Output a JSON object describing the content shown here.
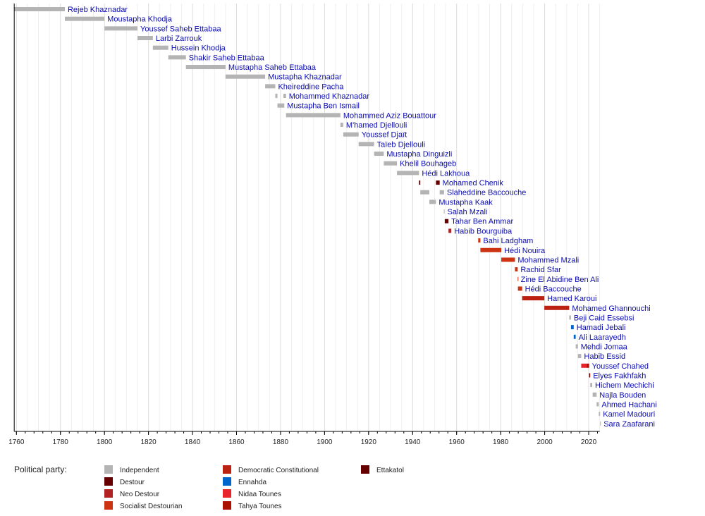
{
  "chart_data": {
    "type": "timeline",
    "xlim": [
      1759,
      2025
    ],
    "x_ticks": [
      1760,
      1780,
      1800,
      1820,
      1840,
      1860,
      1880,
      1900,
      1920,
      1940,
      1960,
      1980,
      2000,
      2020
    ],
    "grid": true,
    "legend_title": "Political party:",
    "legend_placement": "bottom",
    "parties": [
      {
        "name": "Independent",
        "color": "#b4b4b4"
      },
      {
        "name": "Destour",
        "color": "#660000"
      },
      {
        "name": "Neo Destour",
        "color": "#b22222"
      },
      {
        "name": "Socialist Destourian",
        "color": "#cc3311"
      },
      {
        "name": "Democratic Constitutional",
        "color": "#bb2211"
      },
      {
        "name": "Ennahda",
        "color": "#0066cc"
      },
      {
        "name": "Nidaa Tounes",
        "color": "#e8232a"
      },
      {
        "name": "Tahya Tounes",
        "color": "#aa1100"
      },
      {
        "name": "Ettakatol",
        "color": "#660000"
      }
    ],
    "rows": [
      {
        "name": "Rejeb Khaznadar",
        "terms": [
          [
            1759,
            1782,
            "Independent"
          ]
        ]
      },
      {
        "name": "Moustapha Khodja",
        "terms": [
          [
            1782,
            1800,
            "Independent"
          ]
        ]
      },
      {
        "name": "Youssef Saheb Ettabaa",
        "terms": [
          [
            1800,
            1815,
            "Independent"
          ]
        ]
      },
      {
        "name": "Larbi Zarrouk",
        "terms": [
          [
            1815,
            1822,
            "Independent"
          ]
        ]
      },
      {
        "name": "Hussein Khodja",
        "terms": [
          [
            1822,
            1829,
            "Independent"
          ]
        ]
      },
      {
        "name": "Shakir Saheb Ettabaa",
        "terms": [
          [
            1829,
            1837,
            "Independent"
          ]
        ]
      },
      {
        "name": "Mustapha Saheb Ettabaa",
        "terms": [
          [
            1837,
            1855,
            "Independent"
          ]
        ]
      },
      {
        "name": "Mustapha Khaznadar",
        "terms": [
          [
            1855,
            1873,
            "Independent"
          ]
        ]
      },
      {
        "name": "Kheireddine Pacha",
        "terms": [
          [
            1873,
            1877.6,
            "Independent"
          ]
        ]
      },
      {
        "name": "Mohammed Khaznadar",
        "terms": [
          [
            1877.6,
            1878.6,
            "Independent"
          ],
          [
            1881.3,
            1882.5,
            "Independent"
          ]
        ]
      },
      {
        "name": "Mustapha Ben Ismail",
        "terms": [
          [
            1878.6,
            1881.7,
            "Independent"
          ]
        ]
      },
      {
        "name": "Mohammed Aziz Bouattour",
        "terms": [
          [
            1882.5,
            1907.2,
            "Independent"
          ]
        ]
      },
      {
        "name": "M'hamed Djellouli",
        "terms": [
          [
            1907.2,
            1908.5,
            "Independent"
          ]
        ]
      },
      {
        "name": "Youssef Djaït",
        "terms": [
          [
            1908.5,
            1915.5,
            "Independent"
          ]
        ]
      },
      {
        "name": "Taïeb Djellouli",
        "terms": [
          [
            1915.5,
            1922.5,
            "Independent"
          ]
        ]
      },
      {
        "name": "Mustapha Dinguizli",
        "terms": [
          [
            1922.5,
            1926.9,
            "Independent"
          ]
        ]
      },
      {
        "name": "Khelil Bouhageb",
        "terms": [
          [
            1926.9,
            1932.9,
            "Independent"
          ]
        ]
      },
      {
        "name": "Hédi Lakhoua",
        "terms": [
          [
            1932.9,
            1942.9,
            "Independent"
          ]
        ]
      },
      {
        "name": "Mohamed Chenik",
        "terms": [
          [
            1942.9,
            1943.5,
            "Destour"
          ],
          [
            1950.6,
            1952.3,
            "Destour"
          ]
        ]
      },
      {
        "name": "Slaheddine Baccouche",
        "terms": [
          [
            1943.5,
            1947.6,
            "Independent"
          ],
          [
            1952.3,
            1954.3,
            "Independent"
          ]
        ]
      },
      {
        "name": "Mustapha Kaak",
        "terms": [
          [
            1947.6,
            1950.6,
            "Independent"
          ]
        ]
      },
      {
        "name": "Salah Mzali",
        "terms": [
          [
            1954.2,
            1954.5,
            "Independent"
          ]
        ]
      },
      {
        "name": "Tahar Ben Ammar",
        "terms": [
          [
            1954.6,
            1956.3,
            "Destour"
          ]
        ]
      },
      {
        "name": "Habib Bourguiba",
        "terms": [
          [
            1956.3,
            1957.6,
            "Neo Destour"
          ]
        ]
      },
      {
        "name": "Bahi Ladgham",
        "terms": [
          [
            1969.8,
            1970.8,
            "Socialist Destourian"
          ]
        ]
      },
      {
        "name": "Hédi Nouira",
        "terms": [
          [
            1970.8,
            1980.3,
            "Socialist Destourian"
          ]
        ]
      },
      {
        "name": "Mohammed Mzali",
        "terms": [
          [
            1980.3,
            1986.5,
            "Socialist Destourian"
          ]
        ]
      },
      {
        "name": "Rachid Sfar",
        "terms": [
          [
            1986.5,
            1987.75,
            "Socialist Destourian"
          ]
        ]
      },
      {
        "name": "Zine El Abidine Ben Ali",
        "terms": [
          [
            1987.75,
            1987.85,
            "Socialist Destourian"
          ]
        ]
      },
      {
        "name": "Hédi Baccouche",
        "terms": [
          [
            1987.85,
            1989.75,
            "Socialist Destourian"
          ]
        ]
      },
      {
        "name": "Hamed Karoui",
        "terms": [
          [
            1989.75,
            1999.85,
            "Democratic Constitutional"
          ]
        ]
      },
      {
        "name": "Mohamed Ghannouchi",
        "terms": [
          [
            1999.85,
            2011.15,
            "Democratic Constitutional"
          ]
        ]
      },
      {
        "name": "Beji Caid Essebsi",
        "terms": [
          [
            2011.15,
            2011.95,
            "Independent"
          ]
        ]
      },
      {
        "name": "Hamadi Jebali",
        "terms": [
          [
            2011.95,
            2013.2,
            "Ennahda"
          ]
        ]
      },
      {
        "name": "Ali Laarayedh",
        "terms": [
          [
            2013.2,
            2014.1,
            "Ennahda"
          ]
        ]
      },
      {
        "name": "Mehdi Jomaa",
        "terms": [
          [
            2014.1,
            2015.1,
            "Independent"
          ]
        ]
      },
      {
        "name": "Habib Essid",
        "terms": [
          [
            2015.1,
            2016.6,
            "Independent"
          ]
        ]
      },
      {
        "name": "Youssef Chahed",
        "terms": [
          [
            2016.6,
            2019.2,
            "Nidaa Tounes"
          ],
          [
            2019.2,
            2020.2,
            "Tahya Tounes"
          ]
        ]
      },
      {
        "name": "Elyes Fakhfakh",
        "terms": [
          [
            2020.2,
            2020.7,
            "Ettakatol"
          ]
        ]
      },
      {
        "name": "Hichem Mechichi",
        "terms": [
          [
            2020.7,
            2021.6,
            "Independent"
          ]
        ]
      },
      {
        "name": "Najla Bouden",
        "terms": [
          [
            2021.8,
            2023.6,
            "Independent"
          ]
        ]
      },
      {
        "name": "Ahmed Hachani",
        "terms": [
          [
            2023.6,
            2024.6,
            "Independent"
          ]
        ]
      },
      {
        "name": "Kamel Madouri",
        "terms": [
          [
            2024.6,
            2025.2,
            "Independent"
          ]
        ]
      },
      {
        "name": "Sara Zaafarani",
        "terms": [
          [
            2025.2,
            2025.5,
            "Independent"
          ]
        ]
      }
    ]
  }
}
